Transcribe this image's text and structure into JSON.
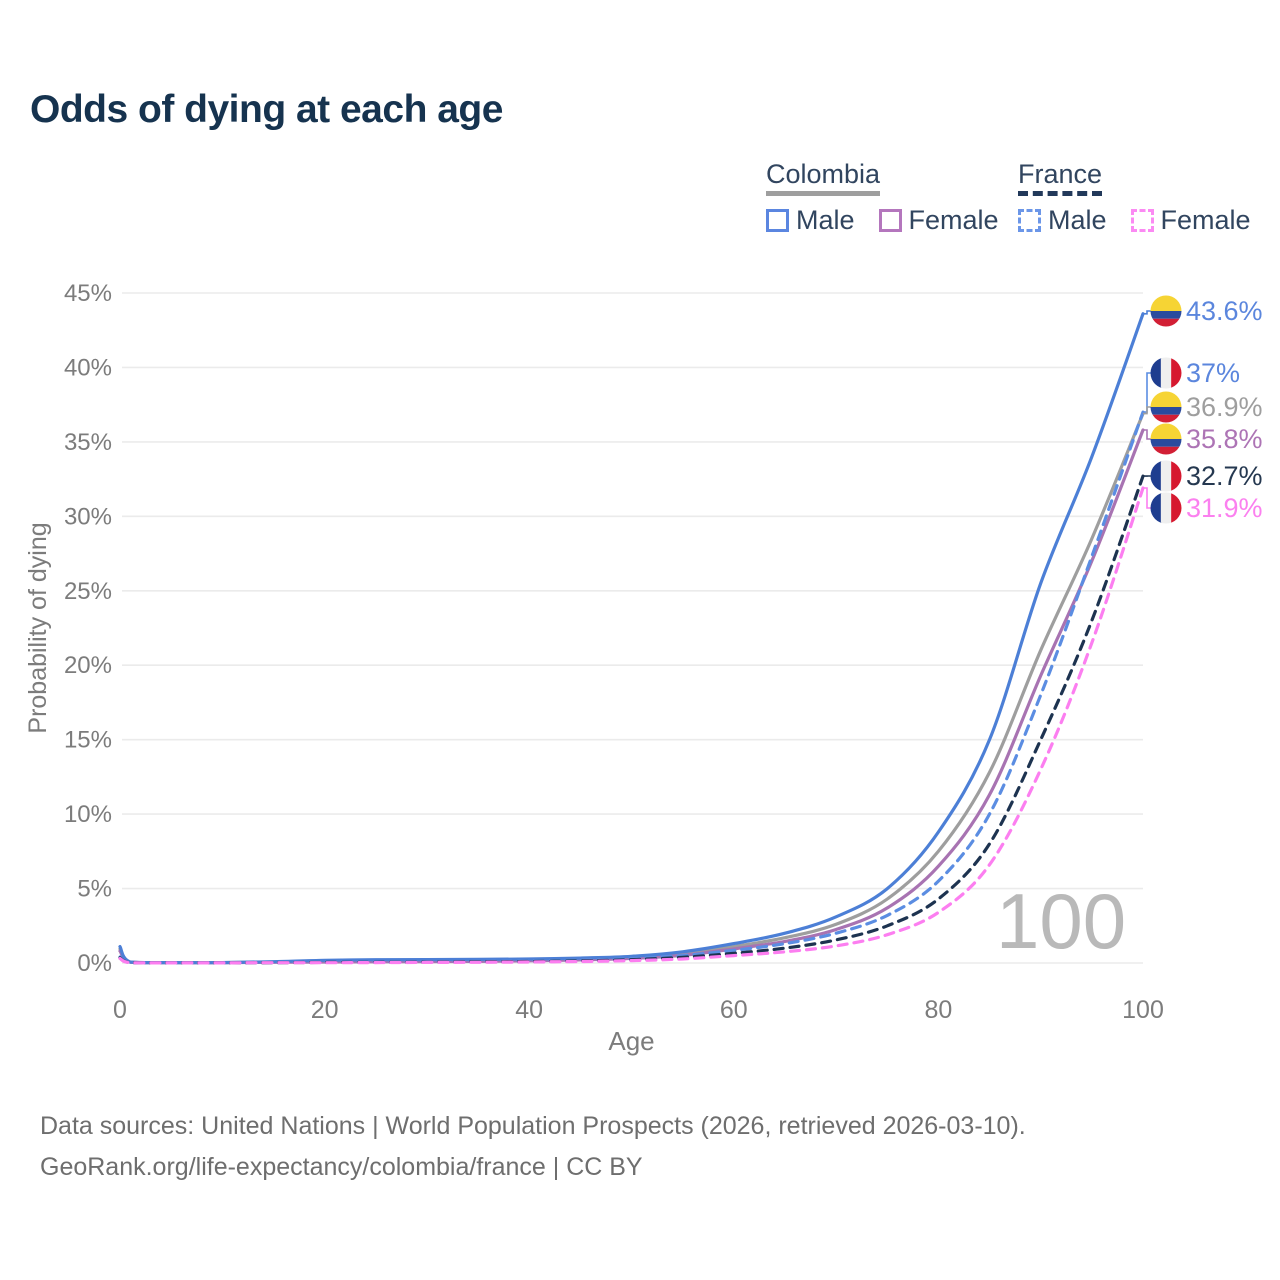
{
  "title": "Odds of dying at each age",
  "legend": {
    "groups": [
      {
        "label": "Colombia",
        "line_style": "solid",
        "line_color": "#9e9e9e",
        "items": [
          {
            "label": "Male",
            "color": "#5b86e0",
            "dashed": false
          },
          {
            "label": "Female",
            "color": "#b476bd",
            "dashed": false
          }
        ]
      },
      {
        "label": "France",
        "line_style": "dashed",
        "line_color": "#22395a",
        "items": [
          {
            "label": "Male",
            "color": "#6b96e8",
            "dashed": true
          },
          {
            "label": "Female",
            "color": "#fb8af3",
            "dashed": true
          }
        ]
      }
    ]
  },
  "chart_data": {
    "type": "line",
    "title": "Odds of dying at each age",
    "xlabel": "Age",
    "ylabel": "Probability of dying",
    "x_ticks": [
      0,
      20,
      40,
      60,
      80,
      100
    ],
    "y_ticks": [
      0,
      5,
      10,
      15,
      20,
      25,
      30,
      35,
      40,
      45
    ],
    "y_tick_suffix": "%",
    "xlim": [
      0,
      100
    ],
    "ylim": [
      0,
      45
    ],
    "grid": true,
    "legend_position": "top-right",
    "watermark": "100",
    "ages": [
      0,
      1,
      5,
      10,
      15,
      20,
      25,
      30,
      35,
      40,
      45,
      50,
      55,
      60,
      65,
      70,
      75,
      80,
      85,
      90,
      95,
      100
    ],
    "series": [
      {
        "name": "Colombia Male",
        "country": "Colombia",
        "sex": "Male",
        "line_style": "solid",
        "color": "#4c7fd6",
        "label_color": "#5b86dd",
        "flag": "colombia",
        "end_label": "43.6%",
        "values": [
          1.1,
          0.07,
          0.03,
          0.03,
          0.09,
          0.18,
          0.22,
          0.23,
          0.24,
          0.27,
          0.33,
          0.45,
          0.75,
          1.3,
          2.0,
          3.1,
          5.0,
          8.8,
          15.0,
          25.5,
          34.0,
          43.6
        ]
      },
      {
        "name": "France Male",
        "country": "France",
        "sex": "Male",
        "line_style": "dashed",
        "color": "#5b8de2",
        "label_color": "#5b86dd",
        "flag": "france",
        "end_label": "37%",
        "values": [
          0.4,
          0.03,
          0.01,
          0.01,
          0.03,
          0.06,
          0.07,
          0.08,
          0.1,
          0.13,
          0.19,
          0.29,
          0.5,
          0.85,
          1.3,
          2.0,
          3.2,
          5.5,
          10.0,
          18.0,
          27.3,
          37.0
        ]
      },
      {
        "name": "Colombia Total",
        "country": "Colombia",
        "sex": "Both",
        "line_style": "solid",
        "color": "#9e9e9e",
        "label_color": "#9e9e9e",
        "flag": "colombia",
        "end_label": "36.9%",
        "values": [
          0.95,
          0.06,
          0.03,
          0.03,
          0.07,
          0.12,
          0.15,
          0.16,
          0.18,
          0.21,
          0.27,
          0.38,
          0.62,
          1.1,
          1.7,
          2.6,
          4.3,
          7.5,
          12.8,
          21.0,
          28.5,
          36.9
        ]
      },
      {
        "name": "Colombia Female",
        "country": "Colombia",
        "sex": "Female",
        "line_style": "solid",
        "color": "#a873b2",
        "label_color": "#ad74b5",
        "flag": "colombia",
        "end_label": "35.8%",
        "values": [
          0.8,
          0.06,
          0.02,
          0.02,
          0.05,
          0.07,
          0.08,
          0.09,
          0.11,
          0.15,
          0.21,
          0.31,
          0.52,
          0.95,
          1.45,
          2.25,
          3.7,
          6.5,
          11.3,
          19.3,
          27.0,
          35.8
        ]
      },
      {
        "name": "France Total",
        "country": "France",
        "sex": "Both",
        "line_style": "dashed",
        "color": "#1d3350",
        "label_color": "#253850",
        "flag": "france",
        "end_label": "32.7%",
        "values": [
          0.35,
          0.03,
          0.01,
          0.01,
          0.02,
          0.04,
          0.05,
          0.06,
          0.08,
          0.1,
          0.14,
          0.22,
          0.38,
          0.65,
          1.0,
          1.55,
          2.5,
          4.3,
          8.0,
          15.0,
          23.0,
          32.7
        ]
      },
      {
        "name": "France Female",
        "country": "France",
        "sex": "Female",
        "line_style": "dashed",
        "color": "#fc7ef0",
        "label_color": "#fb80ef",
        "flag": "france",
        "end_label": "31.9%",
        "values": [
          0.3,
          0.02,
          0.01,
          0.01,
          0.02,
          0.02,
          0.03,
          0.04,
          0.05,
          0.07,
          0.1,
          0.16,
          0.27,
          0.5,
          0.75,
          1.15,
          1.9,
          3.4,
          6.6,
          13.0,
          21.5,
          31.9
        ]
      }
    ],
    "flag_colors": {
      "colombia": {
        "yellow": "#f6d434",
        "blue": "#2a4b9e",
        "red": "#d21f35"
      },
      "france": {
        "blue": "#1e3d8f",
        "white": "#efefef",
        "red": "#d6182f"
      }
    }
  },
  "footer": {
    "line1": "Data sources: United Nations | World Population Prospects (2026, retrieved 2026-03-10).",
    "line2": "GeoRank.org/life-expectancy/colombia/france | CC BY"
  },
  "colors": {
    "title": "#16334f",
    "legend_text": "#31455f",
    "axis_text": "#7c7c7c",
    "grid": "#ebebeb",
    "watermark": "#b9b9b9",
    "footer_text": "#6e6e6e"
  }
}
